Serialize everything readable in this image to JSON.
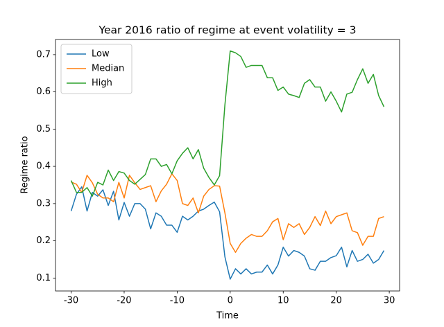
{
  "chart_data": {
    "type": "line",
    "title": "Year 2016 ratio of regime at event volatility = 3",
    "x_label": "Time",
    "y_label": "Regime ratio",
    "x": [
      -30,
      -29,
      -28,
      -27,
      -26,
      -25,
      -24,
      -23,
      -22,
      -21,
      -20,
      -19,
      -18,
      -17,
      -16,
      -15,
      -14,
      -13,
      -12,
      -11,
      -10,
      -9,
      -8,
      -7,
      -6,
      -5,
      -4,
      -3,
      -2,
      -1,
      0,
      1,
      2,
      3,
      4,
      5,
      6,
      7,
      8,
      9,
      10,
      11,
      12,
      13,
      14,
      15,
      16,
      17,
      18,
      19,
      20,
      21,
      22,
      23,
      24,
      25,
      26,
      27,
      28,
      29
    ],
    "series": [
      {
        "name": "Low",
        "color": "#1f77b4",
        "values": [
          0.28,
          0.325,
          0.345,
          0.28,
          0.33,
          0.32,
          0.337,
          0.295,
          0.333,
          0.256,
          0.303,
          0.266,
          0.3,
          0.3,
          0.285,
          0.232,
          0.275,
          0.266,
          0.242,
          0.242,
          0.223,
          0.266,
          0.256,
          0.266,
          0.28,
          0.285,
          0.295,
          0.304,
          0.278,
          0.157,
          0.097,
          0.125,
          0.111,
          0.125,
          0.111,
          0.116,
          0.116,
          0.135,
          0.111,
          0.135,
          0.183,
          0.159,
          0.174,
          0.169,
          0.159,
          0.125,
          0.121,
          0.145,
          0.145,
          0.155,
          0.16,
          0.183,
          0.13,
          0.174,
          0.145,
          0.15,
          0.164,
          0.14,
          0.15,
          0.174
        ]
      },
      {
        "name": "Median",
        "color": "#ff7f0e",
        "values": [
          0.358,
          0.352,
          0.33,
          0.376,
          0.356,
          0.325,
          0.315,
          0.315,
          0.305,
          0.357,
          0.315,
          0.376,
          0.356,
          0.338,
          0.343,
          0.348,
          0.305,
          0.334,
          0.352,
          0.38,
          0.362,
          0.3,
          0.295,
          0.315,
          0.275,
          0.32,
          0.338,
          0.348,
          0.347,
          0.275,
          0.193,
          0.169,
          0.193,
          0.207,
          0.217,
          0.212,
          0.212,
          0.227,
          0.251,
          0.26,
          0.203,
          0.246,
          0.236,
          0.246,
          0.217,
          0.236,
          0.265,
          0.241,
          0.28,
          0.246,
          0.265,
          0.27,
          0.275,
          0.227,
          0.222,
          0.188,
          0.212,
          0.212,
          0.26,
          0.265
        ]
      },
      {
        "name": "High",
        "color": "#2ca02c",
        "values": [
          0.362,
          0.33,
          0.33,
          0.343,
          0.32,
          0.357,
          0.35,
          0.39,
          0.362,
          0.386,
          0.382,
          0.362,
          0.352,
          0.365,
          0.378,
          0.42,
          0.42,
          0.4,
          0.405,
          0.38,
          0.415,
          0.435,
          0.45,
          0.42,
          0.445,
          0.395,
          0.37,
          0.35,
          0.375,
          0.565,
          0.71,
          0.705,
          0.695,
          0.666,
          0.671,
          0.671,
          0.671,
          0.638,
          0.638,
          0.604,
          0.613,
          0.594,
          0.59,
          0.585,
          0.623,
          0.633,
          0.613,
          0.613,
          0.575,
          0.6,
          0.575,
          0.546,
          0.594,
          0.599,
          0.633,
          0.662,
          0.623,
          0.647,
          0.59,
          0.56
        ]
      }
    ],
    "xlim": [
      -32.95,
      31.95
    ],
    "xticks": [
      -30,
      -20,
      -10,
      0,
      10,
      20,
      30
    ],
    "ylim": [
      0.0653,
      0.7407
    ],
    "yticks": [
      0.1,
      0.2,
      0.3,
      0.4,
      0.5,
      0.6,
      0.7
    ],
    "grid": false,
    "legend": "upper left"
  }
}
